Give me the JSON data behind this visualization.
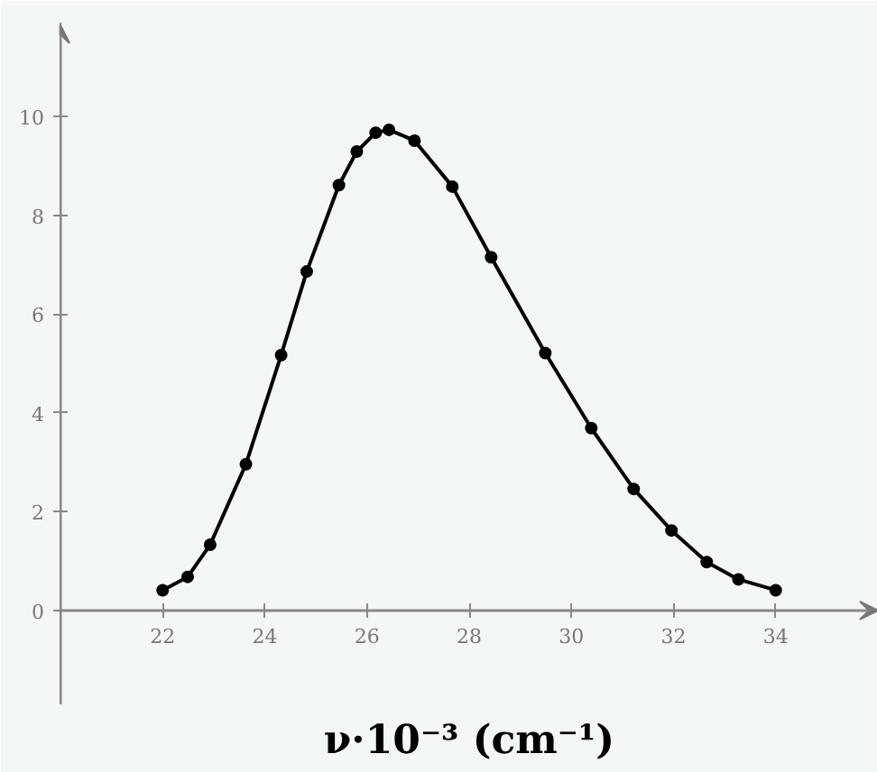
{
  "chart_data": {
    "type": "line",
    "xlabel": "ν·10⁻³ (cm⁻¹)",
    "x": [
      22.0,
      22.49,
      22.93,
      23.63,
      24.32,
      24.82,
      25.45,
      25.8,
      26.17,
      26.43,
      26.93,
      27.67,
      28.43,
      29.49,
      30.39,
      31.22,
      31.96,
      32.65,
      33.27,
      34.0
    ],
    "series": [
      {
        "color": "#000000",
        "values": [
          0.41,
          0.68,
          1.33,
          2.96,
          5.17,
          6.86,
          8.61,
          9.29,
          9.67,
          9.73,
          9.51,
          8.58,
          7.15,
          5.21,
          3.69,
          2.46,
          1.62,
          0.98,
          0.63,
          0.41
        ]
      }
    ],
    "xlim": [
      20,
      36
    ],
    "ylim": [
      -1.9,
      11.9
    ],
    "xticks": [
      22,
      24,
      26,
      28,
      30,
      32,
      34
    ],
    "yticks": [
      0,
      2,
      4,
      6,
      8,
      10
    ],
    "marker": "circle",
    "line_style": "solid",
    "grid": false
  }
}
